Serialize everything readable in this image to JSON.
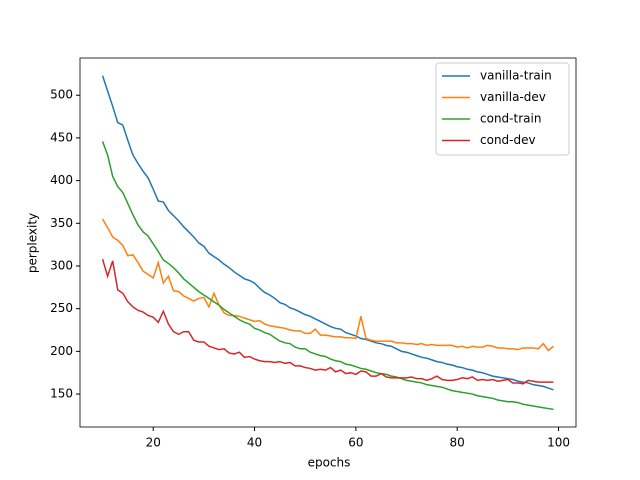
{
  "chart_data": {
    "type": "line",
    "xlabel": "epochs",
    "ylabel": "perplexity",
    "x": [
      10,
      11,
      12,
      13,
      14,
      15,
      16,
      17,
      18,
      19,
      20,
      21,
      22,
      23,
      24,
      25,
      26,
      27,
      28,
      29,
      30,
      31,
      32,
      33,
      34,
      35,
      36,
      37,
      38,
      39,
      40,
      41,
      42,
      43,
      44,
      45,
      46,
      47,
      48,
      49,
      50,
      51,
      52,
      53,
      54,
      55,
      56,
      57,
      58,
      59,
      60,
      61,
      62,
      63,
      64,
      65,
      66,
      67,
      68,
      69,
      70,
      71,
      72,
      73,
      74,
      75,
      76,
      77,
      78,
      79,
      80,
      81,
      82,
      83,
      84,
      85,
      86,
      87,
      88,
      89,
      90,
      91,
      92,
      93,
      94,
      95,
      96,
      97,
      98,
      99
    ],
    "series": [
      {
        "name": "vanilla-train",
        "color": "#1f77b4",
        "values": [
          523,
          505,
          487,
          468,
          465,
          447,
          430,
          420,
          411,
          403,
          390,
          376,
          375,
          365,
          359,
          353,
          346,
          340,
          334,
          327,
          323,
          315,
          311,
          307,
          302,
          298,
          293,
          289,
          285,
          283,
          280,
          274,
          269,
          266,
          262,
          257,
          255,
          251,
          249,
          246,
          243,
          241,
          238,
          235,
          232,
          229,
          227,
          226,
          222,
          220,
          218,
          215,
          214,
          212,
          210,
          209,
          207,
          206,
          203,
          200,
          199,
          197,
          195,
          193,
          192,
          190,
          188,
          187,
          185,
          184,
          182,
          181,
          179,
          178,
          176,
          175,
          173,
          171,
          170,
          169,
          168,
          167,
          165,
          164,
          163,
          161,
          160,
          159,
          157,
          155
        ]
      },
      {
        "name": "vanilla-dev",
        "color": "#ff7f0e",
        "values": [
          355,
          345,
          334,
          330,
          324,
          312,
          313,
          304,
          294,
          290,
          286,
          304,
          280,
          288,
          271,
          270,
          265,
          262,
          259,
          262,
          263,
          252,
          268,
          254,
          245,
          242,
          242,
          241,
          239,
          237,
          235,
          236,
          232,
          230,
          229,
          228,
          227,
          225,
          224,
          224,
          221,
          221,
          226,
          219,
          219,
          218,
          217,
          217,
          216,
          216,
          215,
          241,
          215,
          213,
          212,
          212,
          212,
          212,
          210,
          210,
          209,
          209,
          208,
          209,
          207,
          208,
          207,
          207,
          207,
          207,
          205,
          206,
          204,
          206,
          205,
          205,
          207,
          206,
          204,
          204,
          203,
          203,
          202,
          204,
          204,
          204,
          203,
          209,
          201,
          206
        ]
      },
      {
        "name": "cond-train",
        "color": "#2ca02c",
        "values": [
          446,
          430,
          405,
          393,
          386,
          373,
          360,
          348,
          340,
          335,
          326,
          317,
          307,
          303,
          298,
          292,
          285,
          280,
          275,
          270,
          266,
          262,
          258,
          254,
          249,
          245,
          241,
          237,
          234,
          232,
          227,
          225,
          222,
          220,
          216,
          212,
          210,
          209,
          205,
          203,
          203,
          199,
          197,
          195,
          194,
          191,
          189,
          188,
          185,
          184,
          182,
          180,
          179,
          177,
          175,
          174,
          173,
          171,
          170,
          168,
          166,
          165,
          164,
          163,
          161,
          160,
          159,
          158,
          156,
          154,
          153,
          152,
          151,
          150,
          148,
          147,
          146,
          145,
          143,
          142,
          141,
          141,
          140,
          138,
          137,
          136,
          135,
          134,
          133,
          132
        ]
      },
      {
        "name": "cond-dev",
        "color": "#d62728",
        "values": [
          308,
          288,
          306,
          272,
          268,
          258,
          252,
          248,
          246,
          242,
          240,
          234,
          247,
          232,
          223,
          220,
          223,
          223,
          213,
          211,
          211,
          206,
          204,
          202,
          203,
          198,
          197,
          199,
          193,
          194,
          191,
          189,
          188,
          188,
          187,
          188,
          186,
          187,
          183,
          183,
          181,
          180,
          178,
          179,
          178,
          181,
          176,
          178,
          174,
          175,
          173,
          177,
          176,
          171,
          171,
          174,
          170,
          169,
          169,
          169,
          169,
          170,
          168,
          168,
          166,
          168,
          171,
          167,
          166,
          166,
          167,
          169,
          168,
          170,
          166,
          167,
          166,
          167,
          165,
          166,
          167,
          163,
          163,
          162,
          166,
          165,
          164,
          164,
          164,
          164
        ]
      }
    ],
    "xlim": [
      5.55,
      103.45
    ],
    "ylim": [
      111.4,
      543.6
    ],
    "xticks": [
      20,
      40,
      60,
      80,
      100
    ],
    "yticks": [
      150,
      200,
      250,
      300,
      350,
      400,
      450,
      500
    ],
    "legend": "upper right"
  }
}
